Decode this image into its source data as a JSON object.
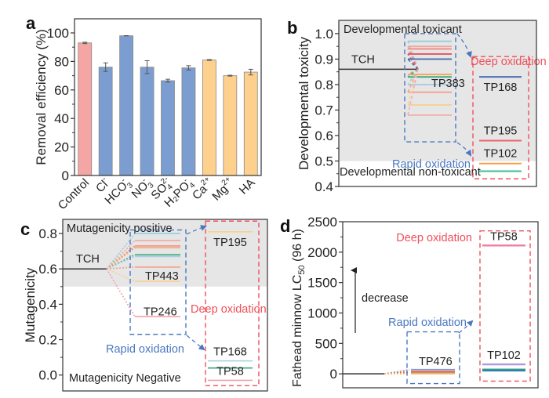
{
  "chart_data": [
    {
      "panel": "a",
      "type": "bar",
      "ylabel": "Removal efficiency (%)",
      "xlabel": "",
      "ylim": [
        0,
        110
      ],
      "yticks": [
        0,
        20,
        40,
        60,
        80,
        100
      ],
      "categories": [
        {
          "base": "Control",
          "sub": "",
          "sup": ""
        },
        {
          "base": "Cl",
          "sub": "",
          "sup": "-"
        },
        {
          "base": "HCO",
          "sub": "3",
          "sup": "-"
        },
        {
          "base": "NO",
          "sub": "3",
          "sup": "-"
        },
        {
          "base": "SO",
          "sub": "4",
          "sup": "2-"
        },
        {
          "base": "H₂PO",
          "sub": "4",
          "sup": "-"
        },
        {
          "base": "Ca",
          "sub": "",
          "sup": "2+"
        },
        {
          "base": "Mg",
          "sub": "",
          "sup": "2+"
        },
        {
          "base": "HA",
          "sub": "",
          "sup": ""
        }
      ],
      "values": [
        93,
        76,
        98,
        76,
        66.5,
        75.5,
        81,
        70,
        72.5
      ],
      "errors": [
        0.5,
        3,
        0.2,
        4.5,
        1,
        1.5,
        0.3,
        0.3,
        2
      ],
      "colors": [
        "#f4a6a4",
        "#7b9dd0",
        "#7b9dd0",
        "#7b9dd0",
        "#7b9dd0",
        "#7b9dd0",
        "#fdd08e",
        "#fdd08e",
        "#fdd08e"
      ]
    },
    {
      "panel": "b",
      "type": "line",
      "ylabel": "Developmental toxicity",
      "ylim": [
        0.4,
        1.05
      ],
      "yticks": [
        0.4,
        0.5,
        0.6,
        0.7,
        0.8,
        0.9,
        1.0
      ],
      "threshold": 0.5,
      "region_labels": {
        "above": "Developmental toxicant",
        "below": "Developmental non-toxicant"
      },
      "parent": {
        "label": "TCH",
        "value": 0.86
      },
      "rapid_oxidation": {
        "label": "Rapid oxidation",
        "highlight_label": "TP383",
        "box": [
          0.575,
          1.0
        ],
        "values": [
          0.97,
          0.95,
          0.94,
          0.92,
          0.9,
          0.84,
          0.83,
          0.8,
          0.77,
          0.72,
          0.68
        ],
        "colors": [
          "#8fd0dc",
          "#f5a59e",
          "#f08a84",
          "#e05560",
          "#4a6fb0",
          "#f5a55a",
          "#3bab7e",
          "#a9cde0",
          "#f5a08c",
          "#f8d090",
          "#f5b0b0"
        ]
      },
      "deep_oxidation": {
        "label": "Deep oxidation",
        "box": [
          0.43,
          0.91
        ],
        "items": [
          {
            "label": "TP168",
            "value": 0.83,
            "color": "#4a6fb0"
          },
          {
            "label": "TP195",
            "value": 0.58,
            "color": "#e8646a"
          },
          {
            "label": "TP102",
            "value": 0.49,
            "color": "#f5a04a"
          },
          {
            "label": "",
            "value": 0.46,
            "color": "#3bbf95"
          }
        ]
      }
    },
    {
      "panel": "c",
      "type": "line",
      "ylabel": "Mutagenicity",
      "ylim": [
        -0.08,
        0.88
      ],
      "yticks": [
        0.0,
        0.2,
        0.4,
        0.6,
        0.8
      ],
      "threshold": 0.5,
      "region_labels": {
        "above": "Mutagenicity positive",
        "below": "Mutagenicity Negative"
      },
      "parent": {
        "label": "TCH",
        "value": 0.6
      },
      "rapid_oxidation": {
        "label": "Rapid oxidation",
        "labels": [
          {
            "text": "TP443",
            "value": 0.56
          },
          {
            "text": "TP246",
            "value": 0.36
          }
        ],
        "box": [
          0.23,
          0.82
        ],
        "values": [
          0.8,
          0.76,
          0.73,
          0.72,
          0.68,
          0.67,
          0.61,
          0.53,
          0.33
        ],
        "colors": [
          "#8fd0dc",
          "#f5a59e",
          "#f08a84",
          "#f5a55a",
          "#3bab7e",
          "#a9cde0",
          "#f5a08c",
          "#f8d090",
          "#f5a0a8"
        ]
      },
      "deep_oxidation": {
        "label": "Deep oxidation",
        "box": [
          -0.06,
          0.87
        ],
        "items": [
          {
            "label": "TP195",
            "value": 0.81,
            "color": "#f8d090"
          },
          {
            "label": "TP168",
            "value": 0.08,
            "color": "#a9cde0"
          },
          {
            "label": "",
            "value": 0.04,
            "color": "#3bab7e"
          },
          {
            "label": "TP58",
            "value": -0.03,
            "color": "#f5a0a8"
          }
        ]
      }
    },
    {
      "panel": "d",
      "type": "line",
      "ylabel": "Fathead minnow LC50 (96 h)",
      "ylabel_parts": {
        "pre": "Fathead minnow LC",
        "sub": "50",
        "post": " (96 h)"
      },
      "ylim": [
        -230,
        2500
      ],
      "yticks": [
        0,
        500,
        1000,
        1500,
        2000,
        2500
      ],
      "arrow_label": "decrease",
      "parent": {
        "value": 0
      },
      "rapid_oxidation": {
        "label": "Rapid oxidation",
        "highlight_label": "TP476",
        "box": [
          -160,
          690
        ],
        "values": [
          70,
          50,
          30,
          10,
          0
        ],
        "colors": [
          "#7b9dd0",
          "#f5a59e",
          "#e05560",
          "#a9c05a",
          "#f5c070"
        ]
      },
      "deep_oxidation": {
        "label": "Deep oxidation",
        "box": [
          -120,
          2350
        ],
        "items": [
          {
            "label": "TP58",
            "value": 2110,
            "color": "#f07ea0"
          },
          {
            "label": "TP102",
            "value": 155,
            "color": "#b09ad8"
          },
          {
            "label": "",
            "value": 70,
            "color": "#3bab7e"
          },
          {
            "label": "",
            "value": 55,
            "color": "#2f7fb0"
          }
        ]
      }
    }
  ],
  "panel_letters": [
    "a",
    "b",
    "c",
    "d"
  ],
  "colors": {
    "rapid": "#4a78c0",
    "deep": "#f0505a",
    "shade_top": "#e6e6e6",
    "shade_bottom": "#ffffff",
    "axis": "#333333"
  }
}
